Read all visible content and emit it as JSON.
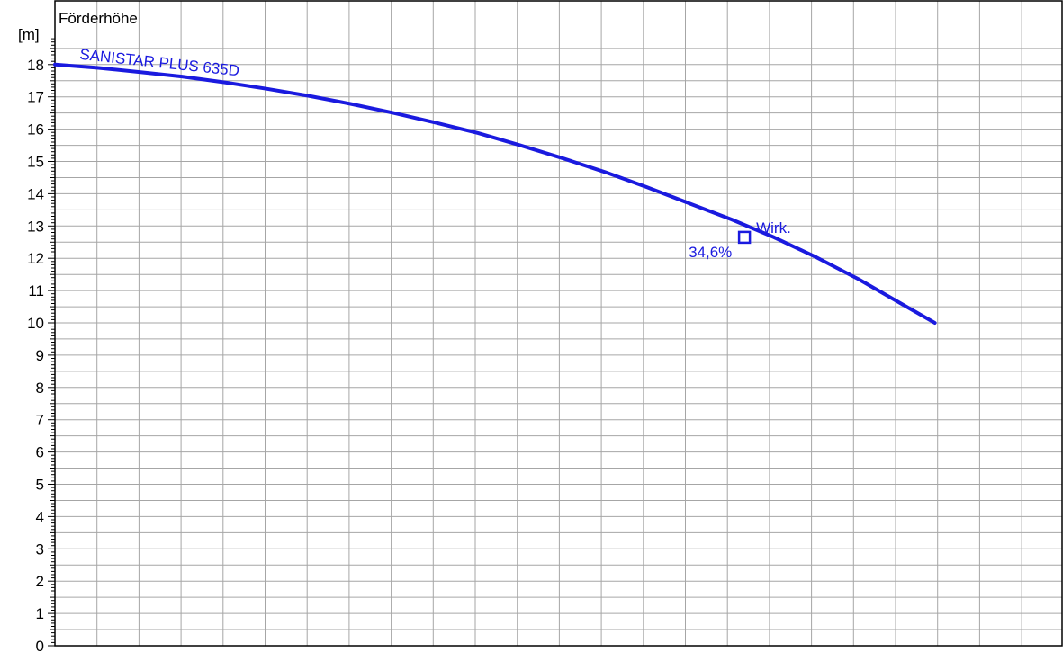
{
  "chart_data": {
    "type": "line",
    "ylabel": "Förderhöhe",
    "yunit": "[m]",
    "ylim": [
      0,
      18.8
    ],
    "yticks": [
      0,
      1,
      2,
      3,
      4,
      5,
      6,
      7,
      8,
      9,
      10,
      11,
      12,
      13,
      14,
      15,
      16,
      17,
      18
    ],
    "grid": true,
    "series": [
      {
        "name": "SANISTAR PLUS 635D",
        "color": "#1a1adf",
        "x": [
          0,
          0.5,
          1,
          1.5,
          2,
          2.5,
          3,
          3.5,
          4,
          4.5,
          5,
          5.5,
          6,
          6.5,
          7,
          7.5,
          8,
          8.5,
          9,
          9.5,
          10,
          10.4
        ],
        "y": [
          18.0,
          17.9,
          17.77,
          17.63,
          17.45,
          17.25,
          17.03,
          16.78,
          16.5,
          16.2,
          15.88,
          15.5,
          15.1,
          14.67,
          14.2,
          13.7,
          13.2,
          12.65,
          12.03,
          11.35,
          10.6,
          10.0
        ]
      }
    ],
    "annotations": [
      {
        "name": "efficiency-point",
        "marker": "square",
        "x": 8.15,
        "y": 12.65,
        "label_top": "Wirk.",
        "label_bottom": "34,6%"
      }
    ]
  }
}
